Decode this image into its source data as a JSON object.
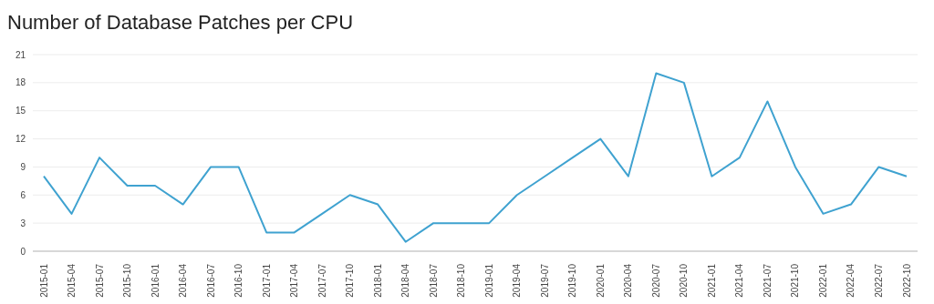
{
  "chart_data": {
    "type": "line",
    "title": "Number of Database Patches per CPU",
    "categories": [
      "2015-01",
      "2015-04",
      "2015-07",
      "2015-10",
      "2016-01",
      "2016-04",
      "2016-07",
      "2016-10",
      "2017-01",
      "2017-04",
      "2017-07",
      "2017-10",
      "2018-01",
      "2018-04",
      "2018-07",
      "2018-10",
      "2019-01",
      "2019-04",
      "2019-07",
      "2019-10",
      "2020-01",
      "2020-04",
      "2020-07",
      "2020-10",
      "2021-01",
      "2021-04",
      "2021-07",
      "2021-10",
      "2022-01",
      "2022-04",
      "2022-07",
      "2022-10"
    ],
    "series": [
      {
        "color": "#3fa2d0",
        "values": [
          8,
          4,
          10,
          7,
          7,
          5,
          9,
          9,
          2,
          2,
          4,
          6,
          5,
          1,
          3,
          3,
          3,
          6,
          8,
          10,
          12,
          8,
          19,
          18,
          8,
          10,
          16,
          9,
          4,
          5,
          9,
          8
        ]
      }
    ],
    "ylim": [
      0,
      21
    ],
    "yticks": [
      0,
      3,
      6,
      9,
      12,
      15,
      18,
      21
    ],
    "grid": "y",
    "marker": "none",
    "line_style": "solid"
  }
}
